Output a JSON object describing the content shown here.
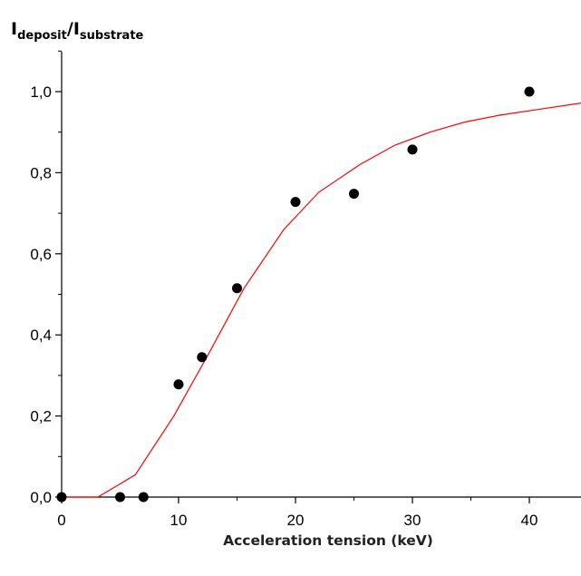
{
  "chart_data": {
    "type": "scatter",
    "title": "",
    "xlabel": "Acceleration tension (keV)",
    "ylabel": {
      "main1": "I",
      "sub1": "deposit",
      "sep": "/",
      "main2": "I",
      "sub2": "substrate"
    },
    "xlim": [
      0,
      44.5
    ],
    "ylim": [
      0,
      1.1
    ],
    "xticks": [
      0,
      10,
      20,
      30,
      40
    ],
    "xtick_labels": [
      "0",
      "10",
      "20",
      "30",
      "40"
    ],
    "yticks": [
      0,
      0.2,
      0.4,
      0.6,
      0.8,
      1.0
    ],
    "ytick_labels": [
      "0,0",
      "0,2",
      "0,4",
      "0,6",
      "0,8",
      "1,0"
    ],
    "grid": false,
    "series": [
      {
        "kind": "points",
        "color": "#000000",
        "x": [
          0,
          5,
          7,
          10,
          12,
          15,
          20,
          25,
          30,
          40
        ],
        "y": [
          0.0,
          0.0,
          0.0,
          0.278,
          0.345,
          0.515,
          0.728,
          0.748,
          0.857,
          1.0
        ]
      },
      {
        "kind": "line",
        "color": "#ff0000",
        "x": [
          0,
          3.1,
          6.3,
          9.6,
          12.5,
          15.6,
          19,
          22,
          25.5,
          28.5,
          31.5,
          34.5,
          37.5,
          41,
          44.5
        ],
        "y": [
          0.0,
          0.0,
          0.055,
          0.2,
          0.35,
          0.515,
          0.66,
          0.752,
          0.82,
          0.868,
          0.9,
          0.925,
          0.942,
          0.957,
          0.972
        ]
      }
    ]
  }
}
